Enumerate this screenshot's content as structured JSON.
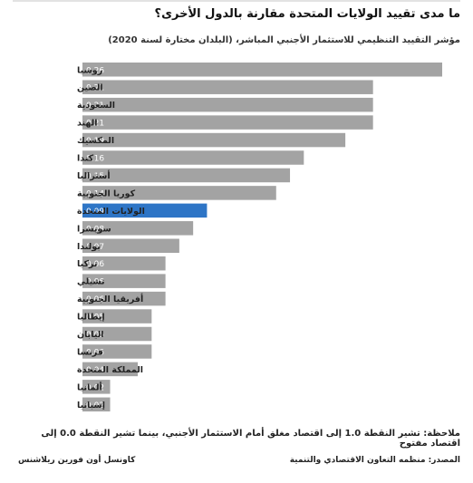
{
  "header": {
    "title": "ما مدى تقييد الولايات المتحدة مقارنة بالدول الأخرى؟",
    "subtitle": "مؤشر التقييد التنظيمي للاستثمار الأجنبي المباشر، (البلدان مختارة لسنة 2020)"
  },
  "footer": {
    "note": "ملاحظة: تشير النقطة 1.0 إلى اقتصاد مغلق أمام الاستثمار الأجنبي، بينما تشير النقطة 0.0 إلى اقتصاد مفتوح",
    "source": "المصدر: منظمه التعاون الاقتصادي والتنمية",
    "brand": "كاونسل أون فورين ريلاشنس"
  },
  "colors": {
    "bar": "#a3a3a3",
    "highlight": "#2e75c6",
    "value_label": "#ffffff"
  },
  "chart_data": {
    "type": "bar",
    "orientation": "horizontal",
    "categories": [
      "روسيا",
      "الصين",
      "السعودية",
      "الهند",
      "المكسيك",
      "كندا",
      "أستراليا",
      "كوريا الجنوبية",
      "الولايات المتحدة",
      "سويسرا",
      "بولندا",
      "تركيا",
      "تشيلي",
      "أفريقيا الجنوبية",
      "إيطاليا",
      "اليابان",
      "فرنسا",
      "المملكة المتحدة",
      "ألمانيا",
      "إسبانيا"
    ],
    "values": [
      0.26,
      0.21,
      0.21,
      0.21,
      0.19,
      0.16,
      0.15,
      0.14,
      0.09,
      0.08,
      0.07,
      0.06,
      0.06,
      0.06,
      0.05,
      0.05,
      0.05,
      0.04,
      0.02,
      0.02
    ],
    "highlight": "الولايات المتحدة",
    "xlim": [
      0,
      0.26
    ],
    "grid": false,
    "legend": "none"
  }
}
